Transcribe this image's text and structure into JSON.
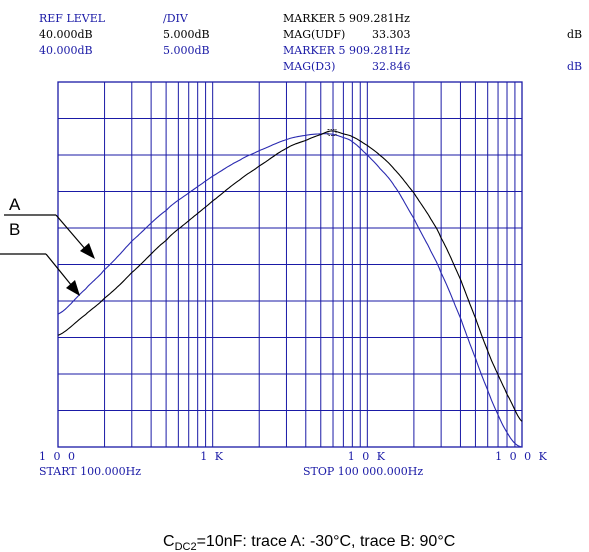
{
  "header": {
    "col1_title": "REF LEVEL",
    "col1_line1": "40.000dB",
    "col1_line2": "40.000dB",
    "col2_title": "/DIV",
    "col2_line1": "5.000dB",
    "col2_line2": "5.000dB",
    "marker1_label": "MARKER 5 909.281Hz",
    "marker1_mag_label": "MAG(UDF)",
    "marker1_mag_value": "33.303",
    "marker1_unit": "dB",
    "marker2_label": "MARKER 5 909.281Hz",
    "marker2_mag_label": "MAG(D3)",
    "marker2_mag_value": "32.846",
    "marker2_unit": "dB"
  },
  "footer": {
    "start_label": "START 100.000Hz",
    "stop_label": "STOP 100 000.000Hz"
  },
  "caption": {
    "prefix": "C",
    "subscript": "DC2",
    "rest": "=10nF: trace A: -30°C, trace B: 90°C"
  },
  "colors": {
    "grid": "#1a1aa6",
    "trace_a": "#2a2ab0",
    "trace_b": "#000000",
    "text_blue": "#1a1aa6"
  },
  "chart_data": {
    "type": "line",
    "x_scale": "log",
    "xlim": [
      100,
      100000
    ],
    "ylim": [
      -10,
      40
    ],
    "y_divisions": 10,
    "x_tick_labels": [
      "1 0 0",
      "1 K",
      "1 0 K",
      "1 0 0 K"
    ],
    "x_tick_values": [
      100,
      1000,
      10000,
      100000
    ],
    "annotations": [
      "A",
      "B"
    ],
    "series": [
      {
        "name": "A",
        "color_key": "trace_a",
        "x": [
          100,
          150,
          200,
          300,
          500,
          700,
          1000,
          1500,
          2000,
          3000,
          4000,
          5000,
          5909,
          7000,
          8000,
          10000,
          12000,
          15000,
          20000,
          25000,
          30000,
          40000,
          50000,
          60000,
          70000,
          80000,
          90000,
          100000
        ],
        "y": [
          8.2,
          11.6,
          14.3,
          18.2,
          22.4,
          24.8,
          27.1,
          29.3,
          30.6,
          32.1,
          32.7,
          32.9,
          32.85,
          32.4,
          31.8,
          30.0,
          28.2,
          25.7,
          21.3,
          17.4,
          13.8,
          7.7,
          2.2,
          -2.2,
          -5.6,
          -8.0,
          -9.5,
          -10.0
        ]
      },
      {
        "name": "B",
        "color_key": "trace_b",
        "x": [
          100,
          150,
          200,
          300,
          500,
          700,
          1000,
          1500,
          2000,
          3000,
          4000,
          5000,
          5909,
          7000,
          8000,
          10000,
          12000,
          15000,
          20000,
          25000,
          30000,
          40000,
          50000,
          60000,
          70000,
          80000,
          100000
        ],
        "y": [
          5.3,
          8.1,
          10.4,
          13.9,
          18.3,
          21.0,
          23.7,
          26.6,
          28.5,
          30.9,
          32.0,
          32.8,
          33.3,
          32.9,
          32.5,
          31.3,
          30.0,
          28.0,
          24.8,
          21.7,
          18.6,
          13.0,
          7.7,
          3.2,
          -0.1,
          -2.8,
          -6.5
        ]
      }
    ]
  }
}
